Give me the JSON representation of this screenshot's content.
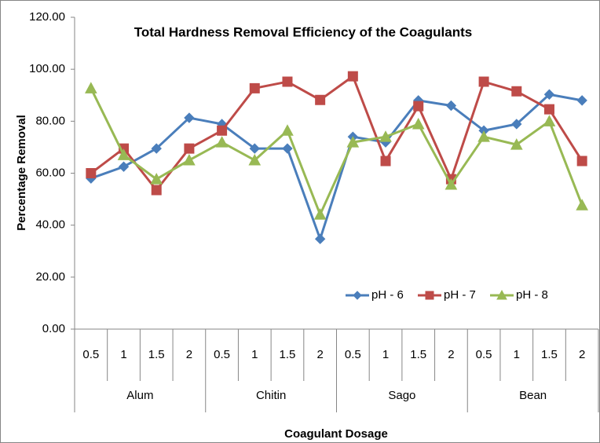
{
  "chart_data": {
    "type": "line",
    "title": "Total Hardness Removal Efficiency of the Coagulants",
    "x_label": "Coagulant Dosage",
    "y_label": "Percentage Removal",
    "groups": [
      "Alum",
      "Chitin",
      "Sago",
      "Bean"
    ],
    "categories": [
      "0.5",
      "1",
      "1.5",
      "2",
      "0.5",
      "1",
      "1.5",
      "2",
      "0.5",
      "1",
      "1.5",
      "2",
      "0.5",
      "1",
      "1.5",
      "2"
    ],
    "series": [
      {
        "name": "pH - 6",
        "color": "#4a7ebb",
        "marker": "diamond",
        "values": [
          58.0,
          62.5,
          69.5,
          81.3,
          78.9,
          69.5,
          69.5,
          34.7,
          74.0,
          71.9,
          88.0,
          86.0,
          76.4,
          78.9,
          90.3,
          88.0
        ]
      },
      {
        "name": "pH - 7",
        "color": "#be4b48",
        "marker": "square",
        "values": [
          60.0,
          69.5,
          53.5,
          69.5,
          76.4,
          92.7,
          95.2,
          88.2,
          97.3,
          64.7,
          85.8,
          57.7,
          95.2,
          91.5,
          84.6,
          64.7
        ]
      },
      {
        "name": "pH - 8",
        "color": "#98b954",
        "marker": "triangle",
        "values": [
          92.7,
          67.0,
          57.7,
          65.0,
          71.9,
          65.0,
          76.4,
          44.1,
          71.9,
          74.0,
          78.9,
          55.6,
          74.0,
          71.0,
          80.0,
          47.7
        ]
      }
    ],
    "ylim": [
      0,
      120
    ],
    "yticks": [
      {
        "value": 0,
        "label": "0.00"
      },
      {
        "value": 20,
        "label": "20.00"
      },
      {
        "value": 40,
        "label": "40.00"
      },
      {
        "value": 60,
        "label": "60.00"
      },
      {
        "value": 80,
        "label": "80.00"
      },
      {
        "value": 100,
        "label": "100.00"
      },
      {
        "value": 120,
        "label": "120.00"
      }
    ],
    "legend": "lower right"
  }
}
